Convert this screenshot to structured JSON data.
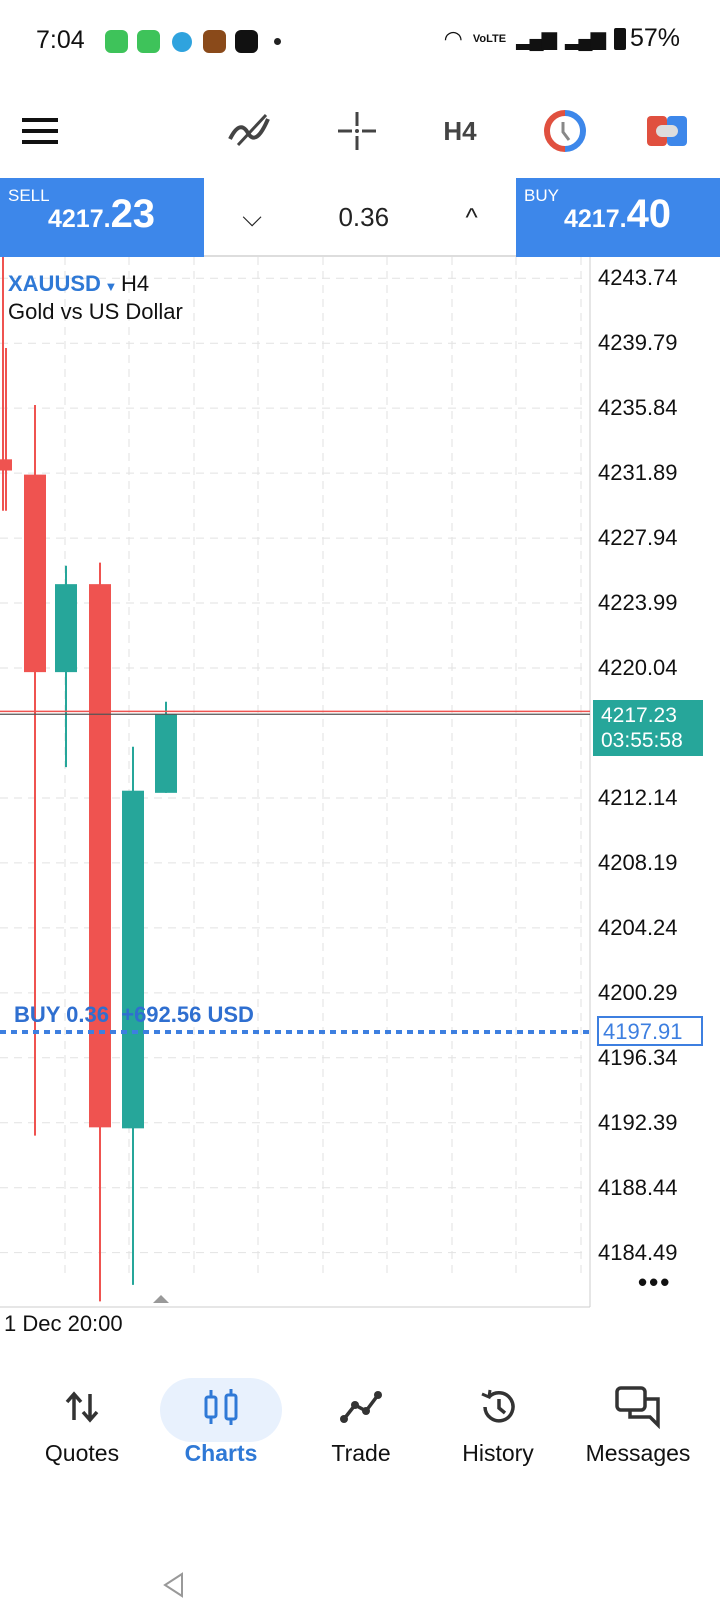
{
  "status_bar": {
    "time": "7:04",
    "battery": "57%",
    "network": "VoLTE"
  },
  "toolbar": {
    "menu_icon": "hamburger-icon",
    "indicators_icon": "indicator-wave-icon",
    "crosshair_icon": "crosshair-icon",
    "timeframe": "H4",
    "clock_icon": "clock-icon",
    "toggle_icon": "toggle-icon"
  },
  "trade_bar": {
    "sell_label": "SELL",
    "sell_price_main": "4217.",
    "sell_price_big": "23",
    "volume": "0.36",
    "buy_label": "BUY",
    "buy_price_main": "4217.",
    "buy_price_big": "40"
  },
  "chart": {
    "symbol": "XAUUSD",
    "timeframe": "H4",
    "description": "Gold vs US Dollar",
    "current_price": "4217.23",
    "countdown": "03:55:58",
    "position_label": "BUY 0.36",
    "position_profit": "+692.56 USD",
    "position_price": "4197.91",
    "date_label": "1 Dec 20:00",
    "more_icon": "more-dots-icon"
  },
  "chart_data": {
    "type": "candlestick",
    "price_ticks": [
      "4243.74",
      "4239.79",
      "4235.84",
      "4231.89",
      "4227.94",
      "4223.99",
      "4220.04",
      "4212.14",
      "4208.19",
      "4204.24",
      "4200.29",
      "4196.34",
      "4192.39",
      "4188.44",
      "4184.49"
    ],
    "ylim": [
      4180.5,
      4245.0
    ],
    "candles": [
      {
        "o": 4232.73,
        "h": 4239.5,
        "l": 4229.6,
        "c": 4232.05
      },
      {
        "o": 4231.8,
        "h": 4236.03,
        "l": 4191.61,
        "c": 4219.79
      },
      {
        "o": 4219.79,
        "h": 4226.26,
        "l": 4214.01,
        "c": 4225.14
      },
      {
        "o": 4225.14,
        "h": 4226.45,
        "l": 4181.53,
        "c": 4192.11
      },
      {
        "o": 4192.05,
        "h": 4215.25,
        "l": 4182.53,
        "c": 4212.58
      },
      {
        "o": 4212.45,
        "h": 4217.99,
        "l": 4212.45,
        "c": 4217.23
      }
    ],
    "bid": 4217.23,
    "ask": 4217.4,
    "position_price": 4197.91,
    "colors": {
      "up": "#26a69a",
      "down": "#ef5350",
      "position": "#3d7fe0",
      "price_tag": "#26a69a"
    }
  },
  "nav": {
    "items": [
      {
        "label": "Quotes",
        "icon": "quotes-arrows-icon"
      },
      {
        "label": "Charts",
        "icon": "candles-icon",
        "active": true
      },
      {
        "label": "Trade",
        "icon": "trade-line-icon"
      },
      {
        "label": "History",
        "icon": "history-icon"
      },
      {
        "label": "Messages",
        "icon": "messages-icon"
      }
    ]
  },
  "colors": {
    "accent": "#3d87ea"
  }
}
